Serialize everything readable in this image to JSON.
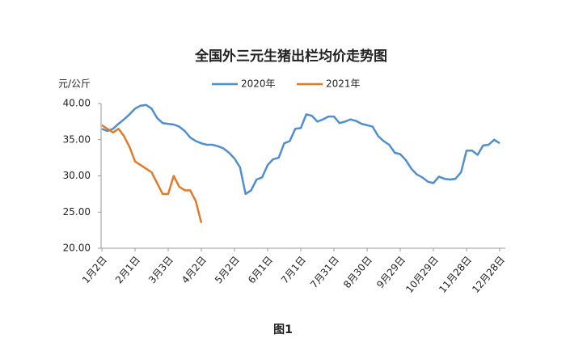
{
  "chart_data": {
    "type": "line",
    "title": "全国外三元生猪出栏均价走势图",
    "y_label": "元/公斤",
    "caption": "图1",
    "categories": [
      "1月2日",
      null,
      null,
      null,
      null,
      null,
      "2月1日",
      null,
      null,
      null,
      null,
      null,
      "3月3日",
      null,
      null,
      null,
      null,
      null,
      "4月2日",
      null,
      null,
      null,
      null,
      null,
      "5月2日",
      null,
      null,
      null,
      null,
      null,
      "6月1日",
      null,
      null,
      null,
      null,
      null,
      "7月1日",
      null,
      null,
      null,
      null,
      null,
      "7月31日",
      null,
      null,
      null,
      null,
      null,
      "8月30日",
      null,
      null,
      null,
      null,
      null,
      "9月29日",
      null,
      null,
      null,
      null,
      null,
      "10月29日",
      null,
      null,
      null,
      null,
      null,
      "11月28日",
      null,
      null,
      null,
      null,
      null,
      "12月28日"
    ],
    "series": [
      {
        "name": "2020年",
        "color": "#4f8fcf",
        "values": [
          36.5,
          36.2,
          36.5,
          37.2,
          37.8,
          38.5,
          39.3,
          39.7,
          39.8,
          39.3,
          38,
          37.3,
          37.2,
          37.1,
          36.8,
          36.2,
          35.3,
          34.8,
          34.5,
          34.3,
          34.3,
          34.1,
          33.8,
          33.2,
          32.4,
          31.2,
          27.5,
          28,
          29.5,
          29.8,
          31.5,
          32.3,
          32.5,
          34.5,
          34.8,
          36.5,
          36.6,
          38.5,
          38.3,
          37.5,
          37.8,
          38.2,
          38.2,
          37.3,
          37.5,
          37.8,
          37.6,
          37.2,
          37,
          36.8,
          35.5,
          34.8,
          34.3,
          33.2,
          33,
          32.2,
          31,
          30.2,
          29.8,
          29.2,
          29,
          29.9,
          29.6,
          29.5,
          29.6,
          30.5,
          33.5,
          33.5,
          32.9,
          34.2,
          34.3,
          35,
          34.5
        ]
      },
      {
        "name": "2021年",
        "color": "#e07b2a",
        "values": [
          37,
          36.5,
          36,
          36.5,
          35.5,
          34,
          32,
          31.5,
          31,
          30.5,
          29,
          27.5,
          27.5,
          30,
          28.5,
          28,
          28,
          26.5,
          23.5,
          null,
          null,
          null,
          null,
          null,
          null,
          null,
          null,
          null,
          null,
          null,
          null,
          null,
          null,
          null,
          null,
          null,
          null,
          null,
          null,
          null,
          null,
          null,
          null,
          null,
          null,
          null,
          null,
          null,
          null,
          null,
          null,
          null,
          null,
          null,
          null,
          null,
          null,
          null,
          null,
          null,
          null,
          null,
          null,
          null,
          null,
          null,
          null,
          null,
          null,
          null,
          null,
          null,
          null
        ]
      }
    ],
    "ylim": [
      20,
      40
    ],
    "yticks": [
      {
        "value": 20,
        "label": "20.00"
      },
      {
        "value": 25,
        "label": "25.00"
      },
      {
        "value": 30,
        "label": "30.00"
      },
      {
        "value": 35,
        "label": "35.00"
      },
      {
        "value": 40,
        "label": "40.00"
      }
    ],
    "grid": false
  }
}
